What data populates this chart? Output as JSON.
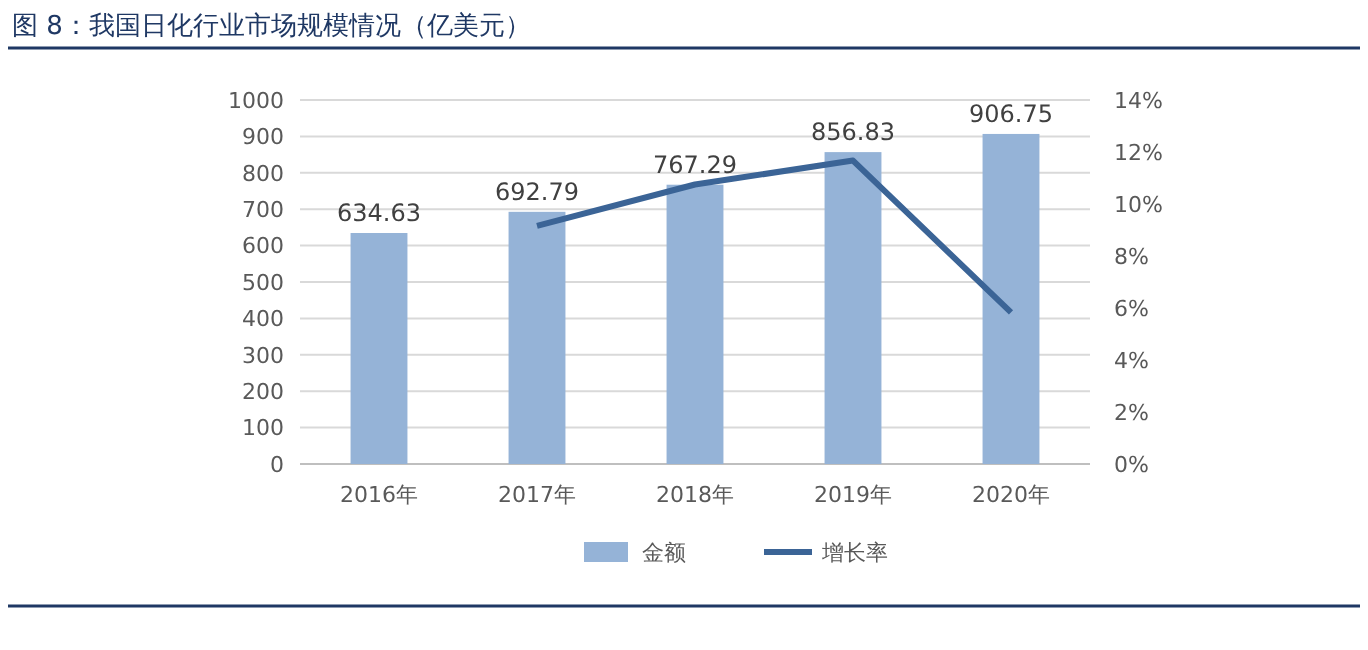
{
  "chart_data": {
    "type": "bar",
    "title": "图 8：我国日化行业市场规模情况（亿美元）",
    "categories": [
      "2016年",
      "2017年",
      "2018年",
      "2019年",
      "2020年"
    ],
    "series": [
      {
        "name": "金额",
        "color": "#95b3d7",
        "values": [
          634.63,
          692.79,
          767.29,
          856.83,
          906.75
        ],
        "value_labels": [
          "634.63",
          "692.79",
          "767.29",
          "856.83",
          "906.75"
        ]
      },
      {
        "name": "增长率",
        "type": "line",
        "axis": "y2",
        "color": "#3b6496",
        "values": [
          null,
          9.16,
          10.75,
          11.67,
          5.83
        ]
      }
    ],
    "ylim": [
      0,
      1000
    ],
    "yticks": [
      0,
      100,
      200,
      300,
      400,
      500,
      600,
      700,
      800,
      900,
      1000
    ],
    "y2lim": [
      0,
      14
    ],
    "y2ticks": [
      {
        "value": 0,
        "label": "0%"
      },
      {
        "value": 2,
        "label": "2%"
      },
      {
        "value": 4,
        "label": "4%"
      },
      {
        "value": 6,
        "label": "6%"
      },
      {
        "value": 8,
        "label": "8%"
      },
      {
        "value": 10,
        "label": "10%"
      },
      {
        "value": 12,
        "label": "12%"
      },
      {
        "value": 14,
        "label": "14%"
      }
    ],
    "grid": "y",
    "legend": "bottom",
    "marker": "none",
    "line_style": "solid"
  }
}
